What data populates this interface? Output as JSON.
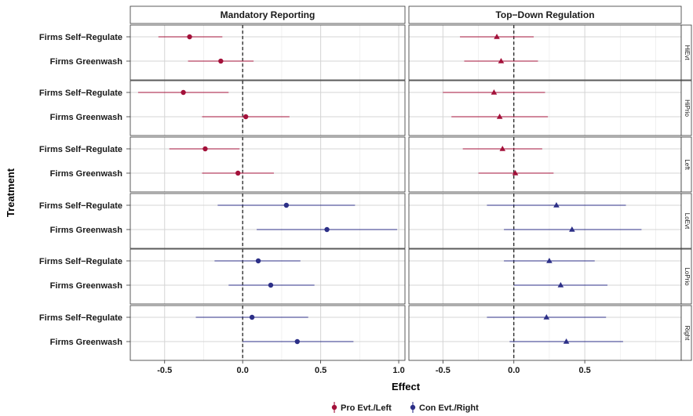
{
  "chart_data": {
    "type": "scatter",
    "subtype": "coefficient-plot-with-error-bars",
    "xlabel": "Effect",
    "ylabel": "Treatment",
    "reference_line_x": 0,
    "grid": true,
    "legend_position": "bottom",
    "columns": [
      {
        "title": "Mandatory Reporting",
        "xlim": [
          -0.72,
          1.04
        ],
        "xticks": [
          -0.5,
          0,
          0.5,
          1
        ],
        "xtick_labels": [
          "-0.5",
          "0.0",
          "0.5",
          "1.0"
        ],
        "marker": "circle"
      },
      {
        "title": "Top−Down Regulation",
        "xlim": [
          -0.74,
          1.18
        ],
        "xticks": [
          -0.5,
          0,
          0.5
        ],
        "xtick_labels": [
          "-0.5",
          "0.0",
          "0.5"
        ],
        "marker": "triangle"
      }
    ],
    "categories": [
      "Firms Self−Regulate",
      "Firms Greenwash"
    ],
    "legend": [
      {
        "label": "Pro Evt./Left",
        "color": "#a3113a"
      },
      {
        "label": "Con Evt./Right",
        "color": "#2c2f87"
      }
    ],
    "rows": [
      {
        "label": "HiEvt",
        "group": 0,
        "panels": [
          [
            {
              "est": -0.34,
              "lo": -0.54,
              "hi": -0.13
            },
            {
              "est": -0.14,
              "lo": -0.35,
              "hi": 0.07
            }
          ],
          [
            {
              "est": -0.12,
              "lo": -0.38,
              "hi": 0.14
            },
            {
              "est": -0.09,
              "lo": -0.35,
              "hi": 0.17
            }
          ]
        ]
      },
      {
        "label": "HiPrio",
        "group": 0,
        "panels": [
          [
            {
              "est": -0.38,
              "lo": -0.67,
              "hi": -0.09
            },
            {
              "est": 0.02,
              "lo": -0.26,
              "hi": 0.3
            }
          ],
          [
            {
              "est": -0.14,
              "lo": -0.5,
              "hi": 0.22
            },
            {
              "est": -0.1,
              "lo": -0.44,
              "hi": 0.24
            }
          ]
        ]
      },
      {
        "label": "Left",
        "group": 0,
        "panels": [
          [
            {
              "est": -0.24,
              "lo": -0.47,
              "hi": -0.02
            },
            {
              "est": -0.03,
              "lo": -0.26,
              "hi": 0.2
            }
          ],
          [
            {
              "est": -0.08,
              "lo": -0.36,
              "hi": 0.2
            },
            {
              "est": 0.01,
              "lo": -0.25,
              "hi": 0.28
            }
          ]
        ]
      },
      {
        "label": "LoEvt",
        "group": 1,
        "panels": [
          [
            {
              "est": 0.28,
              "lo": -0.16,
              "hi": 0.72
            },
            {
              "est": 0.54,
              "lo": 0.09,
              "hi": 0.99
            }
          ],
          [
            {
              "est": 0.3,
              "lo": -0.19,
              "hi": 0.79
            },
            {
              "est": 0.41,
              "lo": -0.07,
              "hi": 0.9
            }
          ]
        ]
      },
      {
        "label": "LoPrio",
        "group": 1,
        "panels": [
          [
            {
              "est": 0.1,
              "lo": -0.18,
              "hi": 0.37
            },
            {
              "est": 0.18,
              "lo": -0.09,
              "hi": 0.46
            }
          ],
          [
            {
              "est": 0.25,
              "lo": -0.07,
              "hi": 0.57
            },
            {
              "est": 0.33,
              "lo": 0.0,
              "hi": 0.66
            }
          ]
        ]
      },
      {
        "label": "Right",
        "group": 1,
        "panels": [
          [
            {
              "est": 0.06,
              "lo": -0.3,
              "hi": 0.42
            },
            {
              "est": 0.35,
              "lo": 0.0,
              "hi": 0.71
            }
          ],
          [
            {
              "est": 0.23,
              "lo": -0.19,
              "hi": 0.65
            },
            {
              "est": 0.37,
              "lo": -0.03,
              "hi": 0.77
            }
          ]
        ]
      }
    ]
  }
}
